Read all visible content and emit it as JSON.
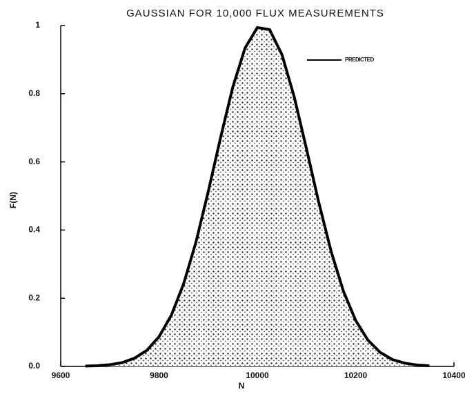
{
  "chart_data": {
    "type": "line",
    "title": "GAUSSIAN FOR 10,000 FLUX MEASUREMENTS",
    "x_label": "N",
    "y_label": "F(N)",
    "x": [
      9650,
      9675,
      9700,
      9725,
      9750,
      9775,
      9800,
      9825,
      9850,
      9875,
      9900,
      9925,
      9950,
      9975,
      10000,
      10025,
      10050,
      10075,
      10100,
      10125,
      10150,
      10175,
      10200,
      10225,
      10250,
      10275,
      10300,
      10325,
      10350
    ],
    "series": [
      {
        "name": "PREDICTED",
        "color": "#000000",
        "values": [
          0.001,
          0.002,
          0.005,
          0.011,
          0.024,
          0.047,
          0.087,
          0.15,
          0.242,
          0.364,
          0.512,
          0.67,
          0.819,
          0.934,
          0.994,
          0.988,
          0.915,
          0.791,
          0.638,
          0.481,
          0.338,
          0.221,
          0.135,
          0.077,
          0.041,
          0.02,
          0.0095,
          0.004,
          0.0017
        ]
      }
    ],
    "xlim": [
      9600,
      10400
    ],
    "xticks": [
      9600,
      9800,
      10000,
      10200,
      10400
    ],
    "ylim": [
      0,
      1
    ],
    "yticks": [
      {
        "value": 0,
        "label": "0.0"
      },
      0.2,
      0.4,
      0.6,
      0.8,
      1
    ],
    "grid": false,
    "legend": "upper right"
  }
}
